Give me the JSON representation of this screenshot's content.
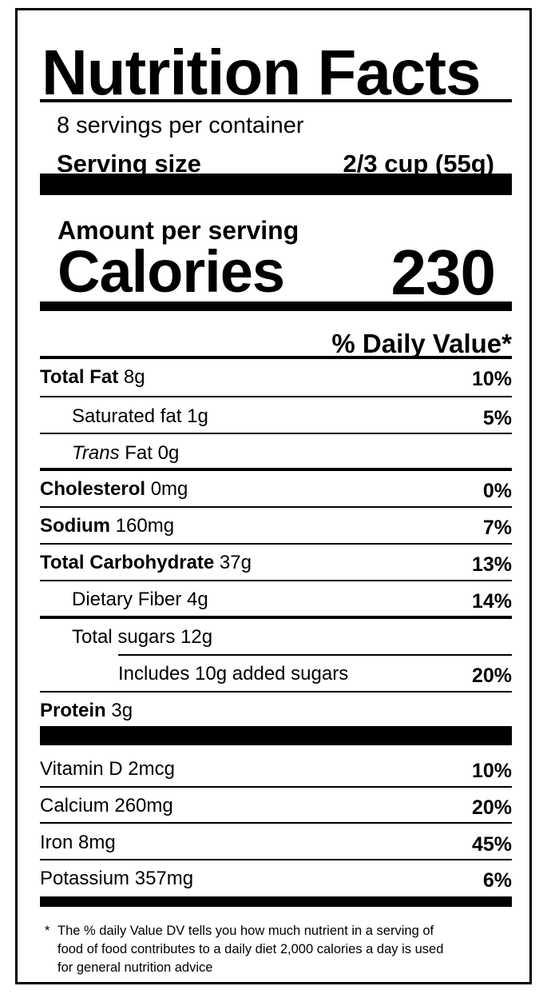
{
  "title": "Nutrition Facts",
  "servings_per_container": "8 servings per container",
  "serving_size": {
    "label": "Serving size",
    "value": "2/3 cup (55g)"
  },
  "amount_per_serving": "Amount per serving",
  "calories": {
    "label": "Calories",
    "value": "230"
  },
  "daily_value_header": "% Daily Value*",
  "nutrients": [
    {
      "name": "Total Fat",
      "amount": "8g",
      "dv": "10%"
    },
    {
      "name": "Saturated fat",
      "amount": "1g",
      "dv": "5%"
    },
    {
      "name": "Trans",
      "name_rest": "Fat 0g",
      "dv": ""
    },
    {
      "name": "Cholesterol",
      "amount": "0mg",
      "dv": "0%"
    },
    {
      "name": "Sodium",
      "amount": "160mg",
      "dv": "7%"
    },
    {
      "name": "Total Carbohydrate",
      "amount": "37g",
      "dv": "13%"
    },
    {
      "name": "Dietary Fiber",
      "amount": "4g",
      "dv": "14%"
    },
    {
      "name": "Total sugars",
      "amount": "12g",
      "dv": ""
    },
    {
      "name": "Includes 10g added sugars",
      "amount": "",
      "dv": "20%"
    },
    {
      "name": "Protein",
      "amount": "3g",
      "dv": ""
    }
  ],
  "vitamins": [
    {
      "name": "Vitamin D",
      "amount": "2mcg",
      "dv": "10%"
    },
    {
      "name": "Calcium",
      "amount": "260mg",
      "dv": "20%"
    },
    {
      "name": "Iron",
      "amount": "8mg",
      "dv": "45%"
    },
    {
      "name": "Potassium",
      "amount": "357mg",
      "dv": "6%"
    }
  ],
  "footnote": {
    "star": "*",
    "lines": [
      "The % daily Value DV tells you how much nutrient in a serving of",
      "food of food contributes to a daily diet 2,000 calories a day is used",
      "for general nutrition advice"
    ]
  }
}
